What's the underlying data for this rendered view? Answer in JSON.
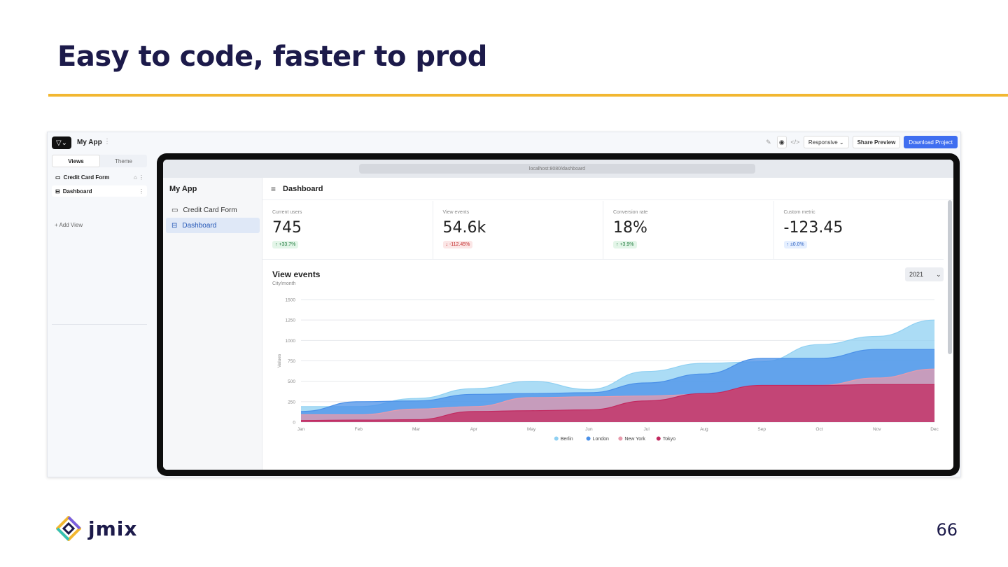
{
  "slide": {
    "title": "Easy to code, faster to prod",
    "page_number": "66",
    "logo_text": "jmix",
    "accent_color": "#f2b731"
  },
  "studio": {
    "app_name": "My App",
    "toolbar": {
      "responsive_label": "Responsive ⌄",
      "share_label": "Share Preview",
      "download_label": "Download Project"
    },
    "tabs": [
      "Views",
      "Theme"
    ],
    "views": [
      "Credit Card Form",
      "Dashboard"
    ],
    "add_view_label": "+ Add View"
  },
  "preview": {
    "url": "localhost:8080/dashboard",
    "app_title": "My App",
    "nav": [
      "Credit Card Form",
      "Dashboard"
    ],
    "page_title": "Dashboard",
    "metrics": [
      {
        "label": "Current users",
        "value": "745",
        "change": "↑ +33.7%",
        "trend": "up"
      },
      {
        "label": "View events",
        "value": "54.6k",
        "change": "↓ -112.45%",
        "trend": "down"
      },
      {
        "label": "Conversion rate",
        "value": "18%",
        "change": "↑ +3.9%",
        "trend": "up"
      },
      {
        "label": "Custom metric",
        "value": "-123.45",
        "change": "↑ ±0.0%",
        "trend": "neutral"
      }
    ],
    "year_select": "2021"
  },
  "chart_data": {
    "type": "area",
    "title": "View events",
    "subtitle": "City/month",
    "xlabel": "",
    "ylabel": "Values",
    "ylim": [
      0,
      1500
    ],
    "yticks": [
      0,
      250,
      500,
      750,
      1000,
      1250,
      1500
    ],
    "grid": true,
    "legend": "bottom",
    "categories": [
      "Jan",
      "Feb",
      "Mar",
      "Apr",
      "May",
      "Jun",
      "Jul",
      "Aug",
      "Sep",
      "Oct",
      "Nov",
      "Dec"
    ],
    "series": [
      {
        "name": "Berlin",
        "color": "#8fd0f2",
        "values": [
          190,
          190,
          290,
          410,
          500,
          400,
          620,
          720,
          740,
          950,
          1050,
          1250
        ]
      },
      {
        "name": "London",
        "color": "#4a90e8",
        "values": [
          130,
          250,
          260,
          340,
          350,
          360,
          480,
          590,
          780,
          780,
          890,
          890
        ]
      },
      {
        "name": "New York",
        "color": "#e89aac",
        "values": [
          90,
          90,
          160,
          190,
          300,
          310,
          320,
          340,
          440,
          450,
          540,
          650
        ]
      },
      {
        "name": "Tokyo",
        "color": "#c2285f",
        "values": [
          20,
          25,
          30,
          130,
          140,
          150,
          260,
          350,
          450,
          450,
          460,
          460
        ]
      }
    ]
  }
}
